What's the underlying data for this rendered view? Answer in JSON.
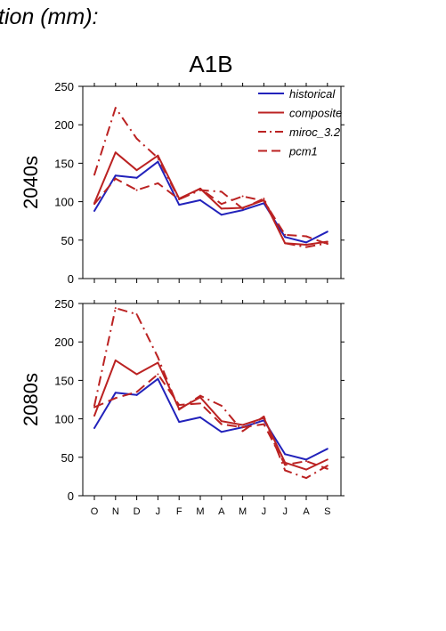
{
  "header": {
    "title_fragment": "tion (mm):",
    "scenario": "A1B"
  },
  "colors": {
    "historical": "#2222bb",
    "model": "#bb2222"
  },
  "chart_data": [
    {
      "type": "line",
      "ylabel": "2040s",
      "ylim": [
        0,
        250
      ],
      "yticks": [
        0,
        50,
        100,
        150,
        200,
        250
      ],
      "categories": [
        "O",
        "N",
        "D",
        "J",
        "F",
        "M",
        "A",
        "M",
        "J",
        "J",
        "A",
        "S"
      ],
      "legend_position": "top-right",
      "series": [
        {
          "name": "historical",
          "style": "solid",
          "color": "#2222bb",
          "values": [
            88,
            134,
            131,
            152,
            96,
            102,
            83,
            89,
            98,
            54,
            47,
            61
          ]
        },
        {
          "name": "composite",
          "style": "solid",
          "color": "#bb2222",
          "values": [
            98,
            164,
            141,
            160,
            104,
            117,
            91,
            92,
            102,
            46,
            44,
            48
          ]
        },
        {
          "name": "miroc_3.2",
          "style": "dashdot",
          "color": "#bb2222",
          "values": [
            135,
            222,
            182,
            157,
            103,
            115,
            113,
            91,
            104,
            46,
            41,
            46
          ]
        },
        {
          "name": "pcm1",
          "style": "dashed",
          "color": "#bb2222",
          "values": [
            97,
            130,
            115,
            124,
            103,
            117,
            97,
            107,
            101,
            57,
            55,
            45
          ]
        }
      ]
    },
    {
      "type": "line",
      "ylabel": "2080s",
      "ylim": [
        0,
        250
      ],
      "yticks": [
        0,
        50,
        100,
        150,
        200,
        250
      ],
      "categories": [
        "O",
        "N",
        "D",
        "J",
        "F",
        "M",
        "A",
        "M",
        "J",
        "J",
        "A",
        "S"
      ],
      "series": [
        {
          "name": "historical",
          "style": "solid",
          "color": "#2222bb",
          "values": [
            88,
            134,
            131,
            152,
            96,
            102,
            83,
            89,
            98,
            54,
            47,
            61
          ]
        },
        {
          "name": "composite",
          "style": "solid",
          "color": "#bb2222",
          "values": [
            104,
            176,
            158,
            173,
            113,
            128,
            97,
            92,
            101,
            43,
            34,
            47
          ]
        },
        {
          "name": "miroc_3.2",
          "style": "dashdot",
          "color": "#bb2222",
          "values": [
            117,
            244,
            236,
            180,
            112,
            130,
            117,
            84,
            103,
            33,
            23,
            39
          ]
        },
        {
          "name": "pcm1",
          "style": "dashed",
          "color": "#bb2222",
          "values": [
            115,
            127,
            135,
            158,
            118,
            120,
            93,
            89,
            93,
            40,
            45,
            35
          ]
        }
      ]
    }
  ]
}
